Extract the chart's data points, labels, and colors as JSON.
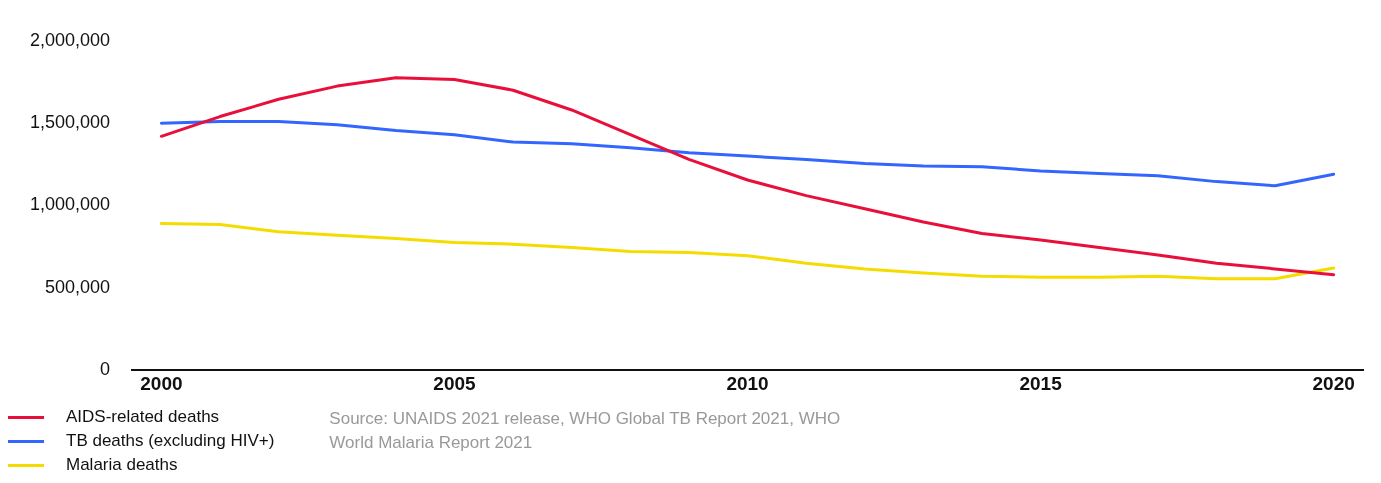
{
  "chart_data": {
    "type": "line",
    "x": [
      2000,
      2001,
      2002,
      2003,
      2004,
      2005,
      2006,
      2007,
      2008,
      2009,
      2010,
      2011,
      2012,
      2013,
      2014,
      2015,
      2016,
      2017,
      2018,
      2019,
      2020
    ],
    "series": [
      {
        "name": "AIDS-related deaths",
        "color": "#e8103a",
        "values": [
          1420000,
          1540000,
          1645000,
          1725000,
          1775000,
          1765000,
          1700000,
          1580000,
          1430000,
          1280000,
          1155000,
          1060000,
          980000,
          900000,
          830000,
          790000,
          745000,
          700000,
          650000,
          615000,
          580000
        ]
      },
      {
        "name": "TB deaths (excluding HIV+)",
        "color": "#3366ff",
        "values": [
          1500000,
          1510000,
          1510000,
          1490000,
          1455000,
          1430000,
          1385000,
          1375000,
          1350000,
          1320000,
          1300000,
          1280000,
          1255000,
          1240000,
          1235000,
          1210000,
          1195000,
          1180000,
          1145000,
          1120000,
          1190000
        ]
      },
      {
        "name": "Malaria deaths",
        "color": "#f5dc00",
        "values": [
          890000,
          885000,
          840000,
          820000,
          800000,
          775000,
          765000,
          745000,
          720000,
          715000,
          695000,
          650000,
          615000,
          590000,
          570000,
          565000,
          565000,
          570000,
          555000,
          555000,
          620000
        ]
      }
    ],
    "xlim": [
      1999.5,
      2020.5
    ],
    "xticks": [
      2000,
      2005,
      2010,
      2015,
      2020
    ],
    "ylim": [
      0,
      2000000
    ],
    "yticks": [
      {
        "value": 0,
        "label": "0"
      },
      {
        "value": 500000,
        "label": "500,000"
      },
      {
        "value": 1000000,
        "label": "1,000,000"
      },
      {
        "value": 1500000,
        "label": "1,500,000"
      },
      {
        "value": 2000000,
        "label": "2,000,000"
      }
    ],
    "grid": false,
    "legend": "bottom left",
    "marker": "none",
    "line_style": "solid",
    "annotations": [
      "Source: UNAIDS 2021 release, WHO Global TB Report 2021, WHO World Malaria Report 2021"
    ]
  }
}
